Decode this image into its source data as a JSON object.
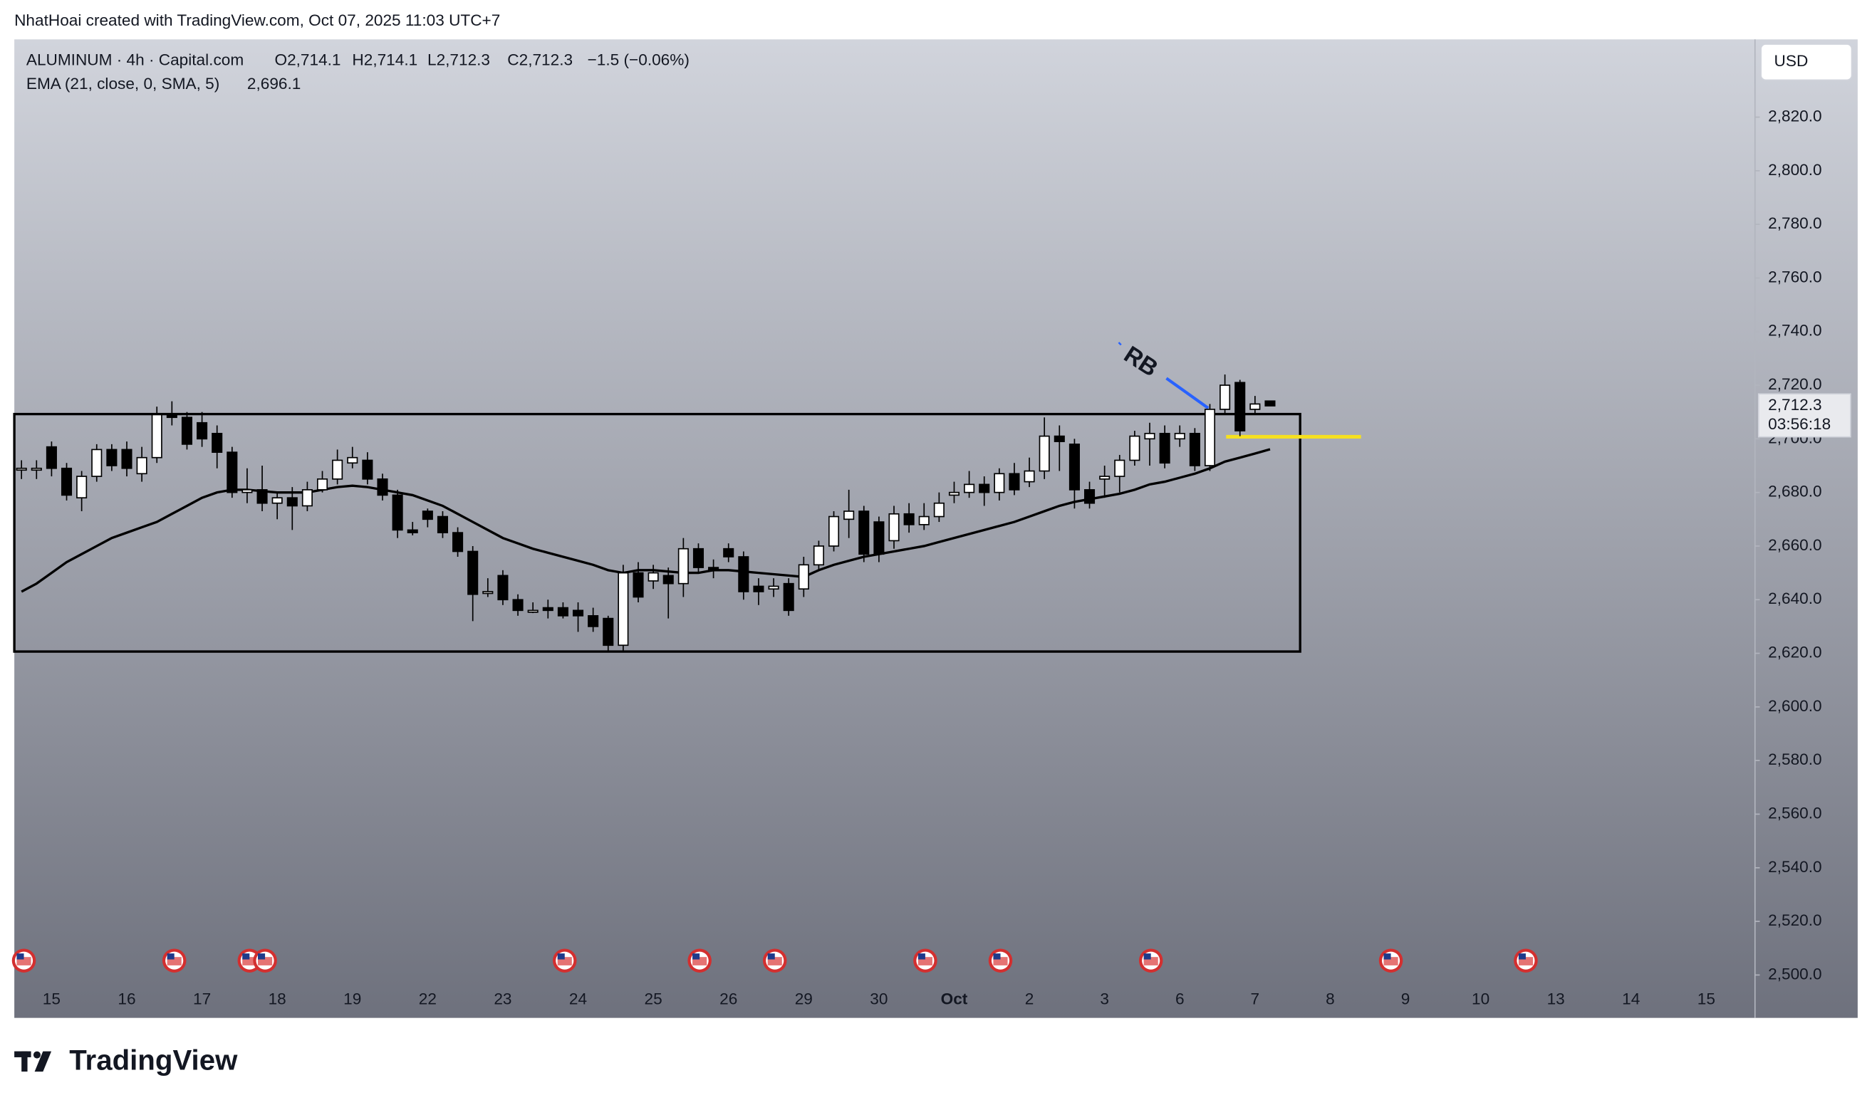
{
  "credit": "NhatHoai created with TradingView.com, Oct 07, 2025 11:03 UTC+7",
  "logo": "TradingView",
  "chart_data": {
    "type": "candlestick",
    "title": "ALUMINUM · 4h · Capital.com",
    "ohlc_legend": [
      "O2,714.1",
      "H2,714.1",
      "L2,712.3",
      "C2,712.3",
      "−1.5 (−0.06%)"
    ],
    "currency": "USD",
    "price_label": "2,712.3",
    "countdown": "03:56:18",
    "annotation": "RB",
    "categories": [
      null,
      null,
      "15",
      null,
      null,
      null,
      null,
      "16",
      null,
      null,
      null,
      null,
      "17",
      null,
      null,
      null,
      null,
      "18",
      null,
      null,
      null,
      null,
      "19",
      null,
      null,
      null,
      null,
      "22",
      null,
      null,
      null,
      null,
      "23",
      null,
      null,
      null,
      null,
      "24",
      null,
      null,
      null,
      null,
      "25",
      null,
      null,
      null,
      null,
      "26",
      null,
      null,
      null,
      null,
      "29",
      null,
      null,
      null,
      null,
      "30",
      null,
      null,
      null,
      null,
      "Oct",
      null,
      null,
      null,
      null,
      "2",
      null,
      null,
      null,
      null,
      "3",
      null,
      null,
      null,
      null,
      "6",
      null,
      null,
      null,
      null,
      "7",
      null,
      null,
      null,
      null,
      "8",
      null,
      null,
      null,
      null,
      "9",
      null,
      null,
      null,
      null,
      "10",
      null,
      null,
      null,
      null,
      "13",
      null,
      null,
      null,
      null,
      "14",
      null,
      null,
      null,
      null,
      "15",
      null,
      null
    ],
    "open": [
      2689,
      2689,
      2697,
      2689,
      2678,
      2686,
      2696,
      2696,
      2687,
      2693,
      2709,
      2708,
      2706,
      2702,
      2695,
      2680,
      2681,
      2676,
      2678,
      2675,
      2681,
      2685,
      2691,
      2692,
      2685,
      2679,
      2666,
      2673,
      2671,
      2665,
      2658,
      2643,
      2649,
      2640,
      2636,
      2637,
      2637,
      2636,
      2634,
      2633,
      2623,
      2650,
      2647,
      2649,
      2646,
      2659,
      2652,
      2659,
      2656,
      2645,
      2644,
      2646,
      2644,
      2653,
      2660,
      2670,
      2673,
      2669,
      2662,
      2672,
      2668,
      2671,
      2679,
      2680,
      2683,
      2680,
      2687,
      2684,
      2688,
      2701,
      2698,
      2681,
      2685,
      2686,
      2692,
      2700,
      2702,
      2700,
      2702,
      2690,
      2711,
      2721,
      2711,
      2714.1,
      null,
      null,
      null,
      null,
      null,
      null,
      null,
      null,
      null,
      null,
      null,
      null,
      null,
      null,
      null,
      null,
      null,
      null,
      null,
      null,
      null,
      null,
      null,
      null,
      null,
      null,
      null,
      null,
      null,
      null,
      null
    ],
    "high": [
      2692,
      2692,
      2699,
      2691,
      2688,
      2698,
      2698,
      2699,
      2697,
      2712,
      2714,
      2710,
      2710,
      2705,
      2697,
      2689,
      2690,
      2680,
      2682,
      2684,
      2688,
      2696,
      2697,
      2695,
      2687,
      2681,
      2669,
      2674,
      2673,
      2667,
      2660,
      2648,
      2651,
      2642,
      2639,
      2640,
      2639,
      2639,
      2637,
      2634,
      2653,
      2654,
      2653,
      2652,
      2663,
      2661,
      2655,
      2661,
      2658,
      2648,
      2648,
      2648,
      2656,
      2662,
      2673,
      2681,
      2675,
      2671,
      2675,
      2676,
      2676,
      2680,
      2684,
      2688,
      2686,
      2689,
      2691,
      2693,
      2708,
      2705,
      2700,
      2684,
      2690,
      2694,
      2703,
      2706,
      2705,
      2705,
      2704,
      2713,
      2724,
      2722,
      2716,
      2714.1,
      null,
      null,
      null,
      null,
      null,
      null,
      null,
      null,
      null,
      null,
      null,
      null,
      null,
      null,
      null,
      null,
      null,
      null,
      null,
      null,
      null,
      null,
      null,
      null,
      null,
      null,
      null,
      null,
      null,
      null,
      null
    ],
    "low": [
      2685,
      2685,
      2686,
      2677,
      2673,
      2684,
      2688,
      2686,
      2684,
      2691,
      2705,
      2696,
      2697,
      2689,
      2678,
      2676,
      2673,
      2670,
      2666,
      2673,
      2680,
      2683,
      2689,
      2683,
      2677,
      2663,
      2664,
      2667,
      2663,
      2656,
      2632,
      2641,
      2638,
      2634,
      2635,
      2633,
      2633,
      2628,
      2628,
      2621,
      2621,
      2639,
      2644,
      2633,
      2641,
      2650,
      2648,
      2654,
      2640,
      2638,
      2641,
      2634,
      2641,
      2651,
      2658,
      2663,
      2654,
      2654,
      2659,
      2665,
      2666,
      2669,
      2676,
      2678,
      2675,
      2677,
      2679,
      2682,
      2685,
      2688,
      2674,
      2674,
      2678,
      2680,
      2690,
      2690,
      2689,
      2697,
      2688,
      2688,
      2709,
      2701,
      2709,
      2712.3,
      null,
      null,
      null,
      null,
      null,
      null,
      null,
      null,
      null,
      null,
      null,
      null,
      null,
      null,
      null,
      null,
      null,
      null,
      null,
      null,
      null,
      null,
      null,
      null,
      null,
      null,
      null,
      null,
      null,
      null,
      null
    ],
    "close": [
      2689,
      2689,
      2689,
      2679,
      2686,
      2696,
      2690,
      2689,
      2693,
      2709,
      2708,
      2698,
      2700,
      2695,
      2680,
      2681,
      2676,
      2678,
      2675,
      2681,
      2685,
      2692,
      2693,
      2685,
      2679,
      2666,
      2665,
      2670,
      2665,
      2658,
      2642,
      2643,
      2640,
      2636,
      2636,
      2636,
      2634,
      2634,
      2630,
      2623,
      2650,
      2641,
      2650,
      2646,
      2659,
      2652,
      2651,
      2656,
      2643,
      2643,
      2645,
      2636,
      2653,
      2660,
      2671,
      2673,
      2657,
      2657,
      2672,
      2668,
      2671,
      2676,
      2680,
      2683,
      2680,
      2687,
      2681,
      2688,
      2701,
      2699,
      2681,
      2676,
      2686,
      2692,
      2701,
      2702,
      2691,
      2702,
      2690,
      2711,
      2720,
      2703,
      2713,
      2712.3,
      null,
      null,
      null,
      null,
      null,
      null,
      null,
      null,
      null,
      null,
      null,
      null,
      null,
      null,
      null,
      null,
      null,
      null,
      null,
      null,
      null,
      null,
      null,
      null,
      null,
      null,
      null,
      null,
      null,
      null,
      null
    ],
    "series": [
      {
        "name": "EMA (21, close, 0, SMA, 5)",
        "last_label": "2,696.1",
        "color": "#000000",
        "values": [
          2643,
          2646,
          2650,
          2654,
          2657,
          2660,
          2663,
          2665,
          2667,
          2669,
          2672,
          2675,
          2678,
          2680,
          2681,
          2681,
          2680.5,
          2680,
          2680,
          2680,
          2681,
          2682,
          2682.5,
          2682,
          2681,
          2680,
          2679,
          2677,
          2675,
          2672,
          2669,
          2666,
          2663,
          2661,
          2659,
          2657.5,
          2656,
          2654.5,
          2653,
          2651,
          2650,
          2651,
          2651,
          2650.5,
          2650,
          2650,
          2651,
          2651,
          2650.5,
          2650,
          2649.5,
          2649,
          2648.5,
          2651,
          2653,
          2654.5,
          2656,
          2657,
          2658,
          2659,
          2660,
          2661.5,
          2663,
          2664.5,
          2666,
          2667.5,
          2669,
          2671,
          2673,
          2675,
          2676.5,
          2677.5,
          2678.5,
          2679.5,
          2681,
          2683,
          2684,
          2685.5,
          2687,
          2689,
          2691.5,
          2693,
          2694.5,
          2696.1,
          null,
          null,
          null,
          null,
          null,
          null,
          null,
          null,
          null,
          null,
          null,
          null,
          null,
          null,
          null,
          null,
          null,
          null,
          null,
          null,
          null,
          null,
          null,
          null,
          null,
          null,
          null,
          null,
          null,
          null,
          null
        ]
      }
    ],
    "up_color": "#ffffff",
    "down_color": "#000000",
    "ylim": [
      2484,
      2849
    ],
    "yticks": [
      {
        "value": 2500,
        "label": "2,500.0"
      },
      {
        "value": 2520,
        "label": "2,520.0"
      },
      {
        "value": 2540,
        "label": "2,540.0"
      },
      {
        "value": 2560,
        "label": "2,560.0"
      },
      {
        "value": 2580,
        "label": "2,580.0"
      },
      {
        "value": 2600,
        "label": "2,600.0"
      },
      {
        "value": 2620,
        "label": "2,620.0"
      },
      {
        "value": 2640,
        "label": "2,640.0"
      },
      {
        "value": 2660,
        "label": "2,660.0"
      },
      {
        "value": 2680,
        "label": "2,680.0"
      },
      {
        "value": 2700,
        "label": "2,700.0"
      },
      {
        "value": 2720,
        "label": "2,720.0"
      },
      {
        "value": 2740,
        "label": "2,740.0"
      },
      {
        "value": 2760,
        "label": "2,760.0"
      },
      {
        "value": 2780,
        "label": "2,780.0"
      },
      {
        "value": 2800,
        "label": "2,800.0"
      },
      {
        "value": 2820,
        "label": "2,820.0"
      }
    ]
  }
}
